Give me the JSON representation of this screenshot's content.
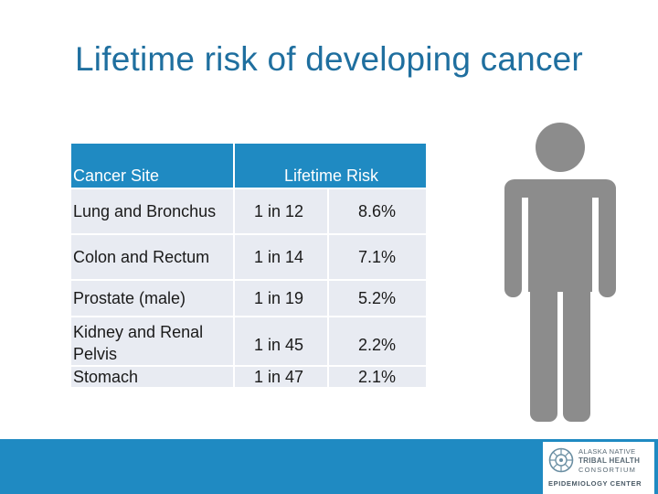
{
  "slide": {
    "title": "Lifetime risk of developing cancer"
  },
  "table": {
    "headers": {
      "site": "Cancer Site",
      "risk": "Lifetime Risk"
    },
    "rows": [
      {
        "site": "Lung and Bronchus",
        "ratio": "1 in 12",
        "percent": "8.6%"
      },
      {
        "site": "Colon and Rectum",
        "ratio": "1 in 14",
        "percent": "7.1%"
      },
      {
        "site": "Prostate (male)",
        "ratio": "1 in 19",
        "percent": "5.2%"
      },
      {
        "site_line1": "Kidney and Renal",
        "site_line2": "Pelvis",
        "ratio": "1 in 45",
        "percent": "2.2%"
      },
      {
        "site": "Stomach",
        "ratio": "1 in 47",
        "percent": "2.1%"
      }
    ]
  },
  "figure": {
    "icon": "male-person-icon",
    "color": "#8c8c8c"
  },
  "footer": {
    "bar_color": "#1f8ac2",
    "logo": {
      "line1": "ALASKA NATIVE",
      "line2": "TRIBAL HEALTH",
      "line3": "CONSORTIUM",
      "bottom": "EPIDEMIOLOGY CENTER"
    }
  },
  "colors": {
    "title": "#1f6f9f",
    "header_bg": "#1f8ac2",
    "row_bg": "#e8ebf2"
  }
}
